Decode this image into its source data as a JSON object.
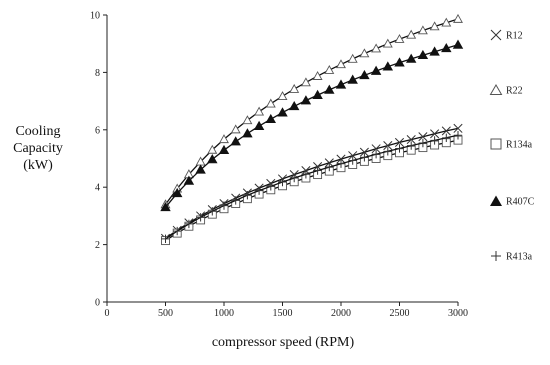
{
  "chart_data": {
    "type": "line",
    "xlabel": "compressor speed (RPM)",
    "ylabel": [
      "Cooling",
      "Capacity",
      "(kW)"
    ],
    "xlim": [
      0,
      3000
    ],
    "ylim": [
      0,
      10
    ],
    "x_ticks": [
      0,
      500,
      1000,
      1500,
      2000,
      2500,
      3000
    ],
    "y_ticks": [
      0,
      2,
      4,
      6,
      8,
      10
    ],
    "grid": false,
    "legend_placement": "right",
    "x": [
      500,
      600,
      700,
      800,
      900,
      1000,
      1100,
      1200,
      1300,
      1400,
      1500,
      1600,
      1700,
      1800,
      1900,
      2000,
      2100,
      2200,
      2300,
      2400,
      2500,
      2600,
      2700,
      2800,
      2900,
      3000
    ],
    "series": [
      {
        "name": "R12",
        "marker": "x",
        "values": [
          2.22,
          2.5,
          2.76,
          3.0,
          3.22,
          3.43,
          3.62,
          3.8,
          3.97,
          4.13,
          4.29,
          4.44,
          4.58,
          4.72,
          4.85,
          4.98,
          5.1,
          5.22,
          5.34,
          5.45,
          5.56,
          5.66,
          5.76,
          5.86,
          5.96,
          6.05
        ]
      },
      {
        "name": "R22",
        "marker": "triangle-open",
        "values": [
          3.4,
          3.95,
          4.45,
          4.89,
          5.3,
          5.67,
          6.01,
          6.33,
          6.63,
          6.91,
          7.17,
          7.42,
          7.65,
          7.87,
          8.08,
          8.28,
          8.47,
          8.66,
          8.83,
          9.0,
          9.16,
          9.31,
          9.46,
          9.6,
          9.73,
          9.86
        ]
      },
      {
        "name": "R134a",
        "marker": "square-open",
        "values": [
          2.14,
          2.4,
          2.64,
          2.86,
          3.06,
          3.25,
          3.43,
          3.6,
          3.76,
          3.91,
          4.05,
          4.19,
          4.32,
          4.44,
          4.56,
          4.68,
          4.79,
          4.9,
          5.0,
          5.1,
          5.2,
          5.29,
          5.38,
          5.47,
          5.55,
          5.64
        ]
      },
      {
        "name": "R407C",
        "marker": "triangle-filled",
        "values": [
          3.3,
          3.79,
          4.22,
          4.61,
          4.97,
          5.29,
          5.59,
          5.87,
          6.13,
          6.37,
          6.6,
          6.82,
          7.02,
          7.21,
          7.39,
          7.57,
          7.74,
          7.9,
          8.05,
          8.2,
          8.34,
          8.47,
          8.6,
          8.72,
          8.84,
          8.96
        ]
      },
      {
        "name": "R413a",
        "marker": "plus",
        "values": [
          2.2,
          2.47,
          2.72,
          2.95,
          3.16,
          3.36,
          3.54,
          3.72,
          3.88,
          4.03,
          4.18,
          4.32,
          4.45,
          4.58,
          4.7,
          4.82,
          4.93,
          5.04,
          5.15,
          5.25,
          5.35,
          5.45,
          5.54,
          5.63,
          5.72,
          5.81
        ]
      }
    ]
  }
}
